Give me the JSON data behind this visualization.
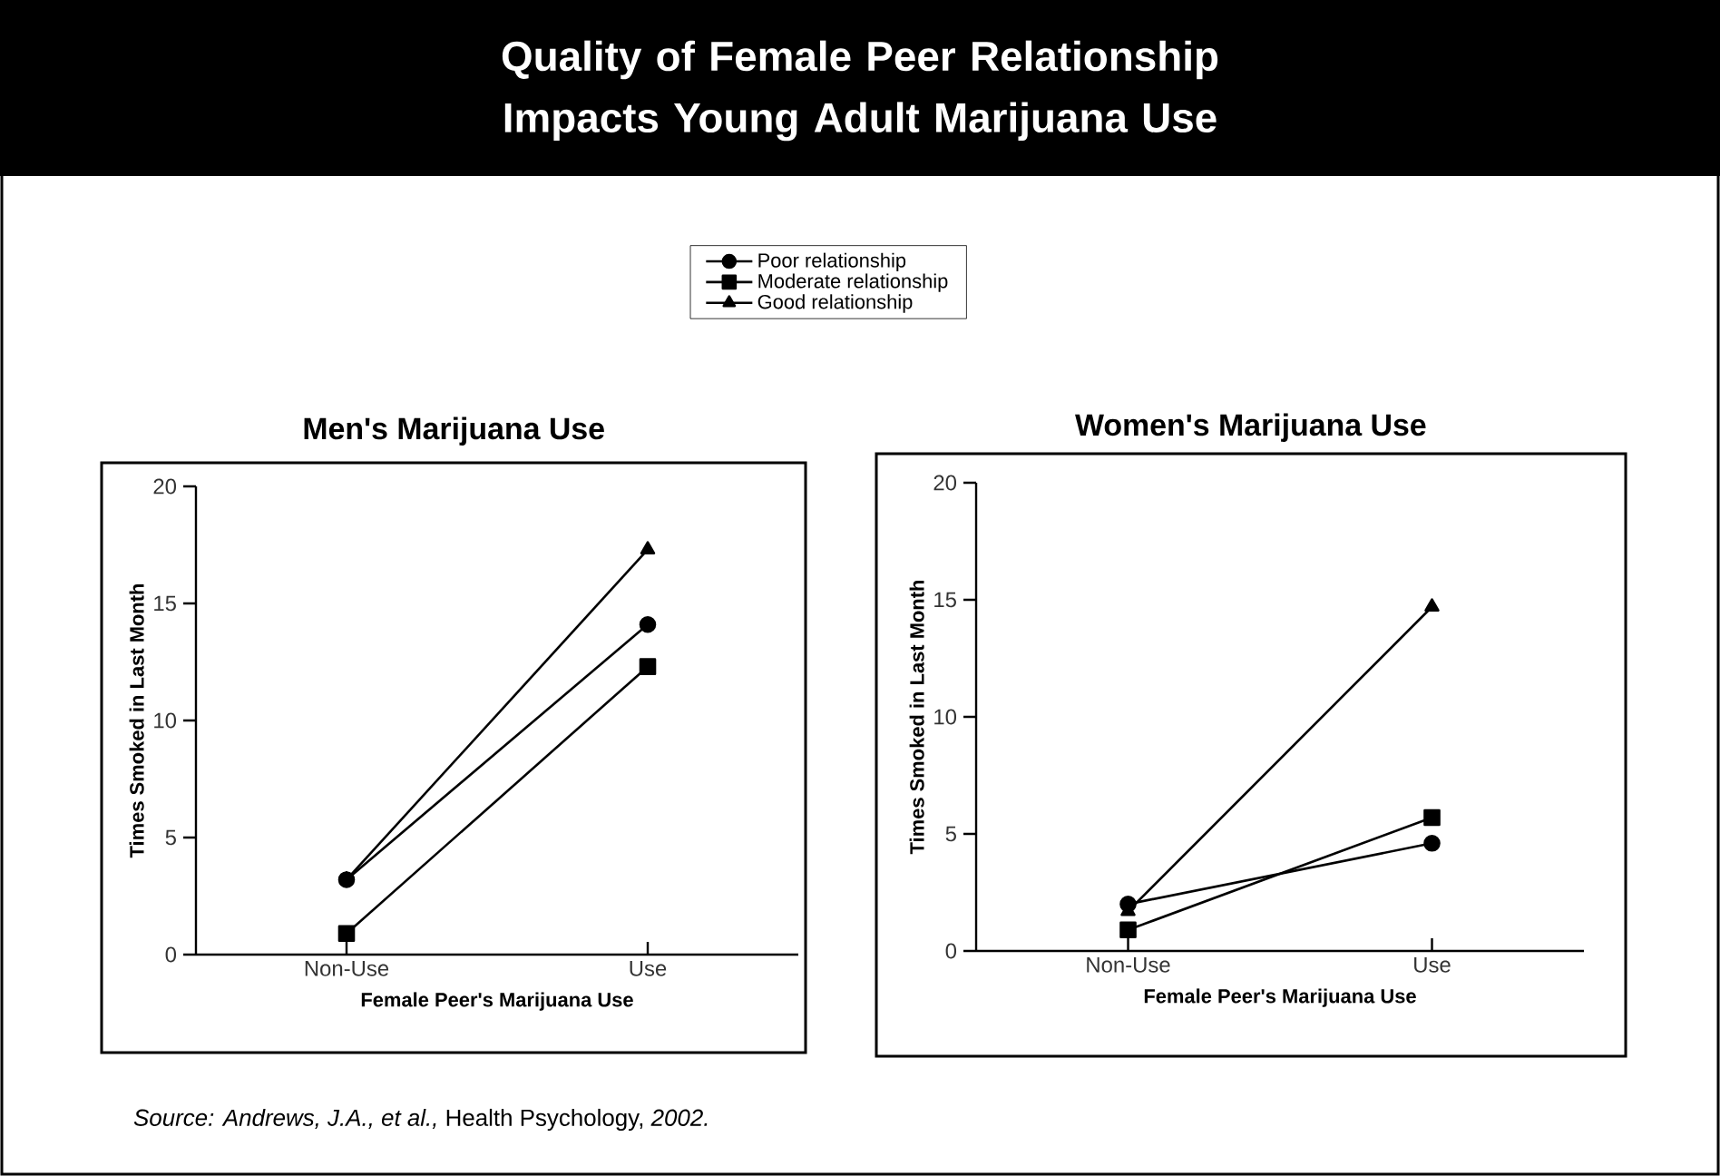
{
  "chart_data": [
    {
      "type": "line",
      "title": "Men's Marijuana Use",
      "xlabel": "Female Peer's Marijuana Use",
      "ylabel": "Times Smoked in Last Month",
      "categories": [
        "Non-Use",
        "Use"
      ],
      "ylim": [
        0,
        20
      ],
      "yticks": [
        0,
        5,
        10,
        15,
        20
      ],
      "grid": false,
      "legend": "top",
      "line_style": "solid",
      "annotations": [
        "Quality of Female Peer Relationship Impacts Young Adult Marijuana Use",
        "*Source:  Andrews, J.A., et al.,* Health Psychology, *2002.*"
      ],
      "series": [
        {
          "name": "Poor relationship",
          "color": "#000000",
          "marker": "circle",
          "values": [
            3.2,
            14.1
          ]
        },
        {
          "name": "Moderate relationship",
          "color": "#000000",
          "marker": "square",
          "values": [
            0.9,
            12.3
          ]
        },
        {
          "name": "Good relationship",
          "color": "#000000",
          "marker": "triangle",
          "values": [
            3.2,
            17.3
          ]
        }
      ]
    },
    {
      "type": "line",
      "title": "Women's Marijuana Use",
      "xlabel": "Female Peer's  Marijuana Use",
      "ylabel": "Times Smoked in Last Month",
      "categories": [
        "Non-Use",
        "Use"
      ],
      "ylim": [
        0,
        20
      ],
      "yticks": [
        0,
        5,
        10,
        15,
        20
      ],
      "grid": false,
      "line_style": "solid",
      "series": [
        {
          "color": "#000000",
          "marker": "circle",
          "values": [
            2.0,
            4.6
          ]
        },
        {
          "color": "#000000",
          "marker": "square",
          "values": [
            0.9,
            5.7
          ]
        },
        {
          "color": "#000000",
          "marker": "triangle",
          "values": [
            1.7,
            14.7
          ]
        }
      ]
    }
  ]
}
